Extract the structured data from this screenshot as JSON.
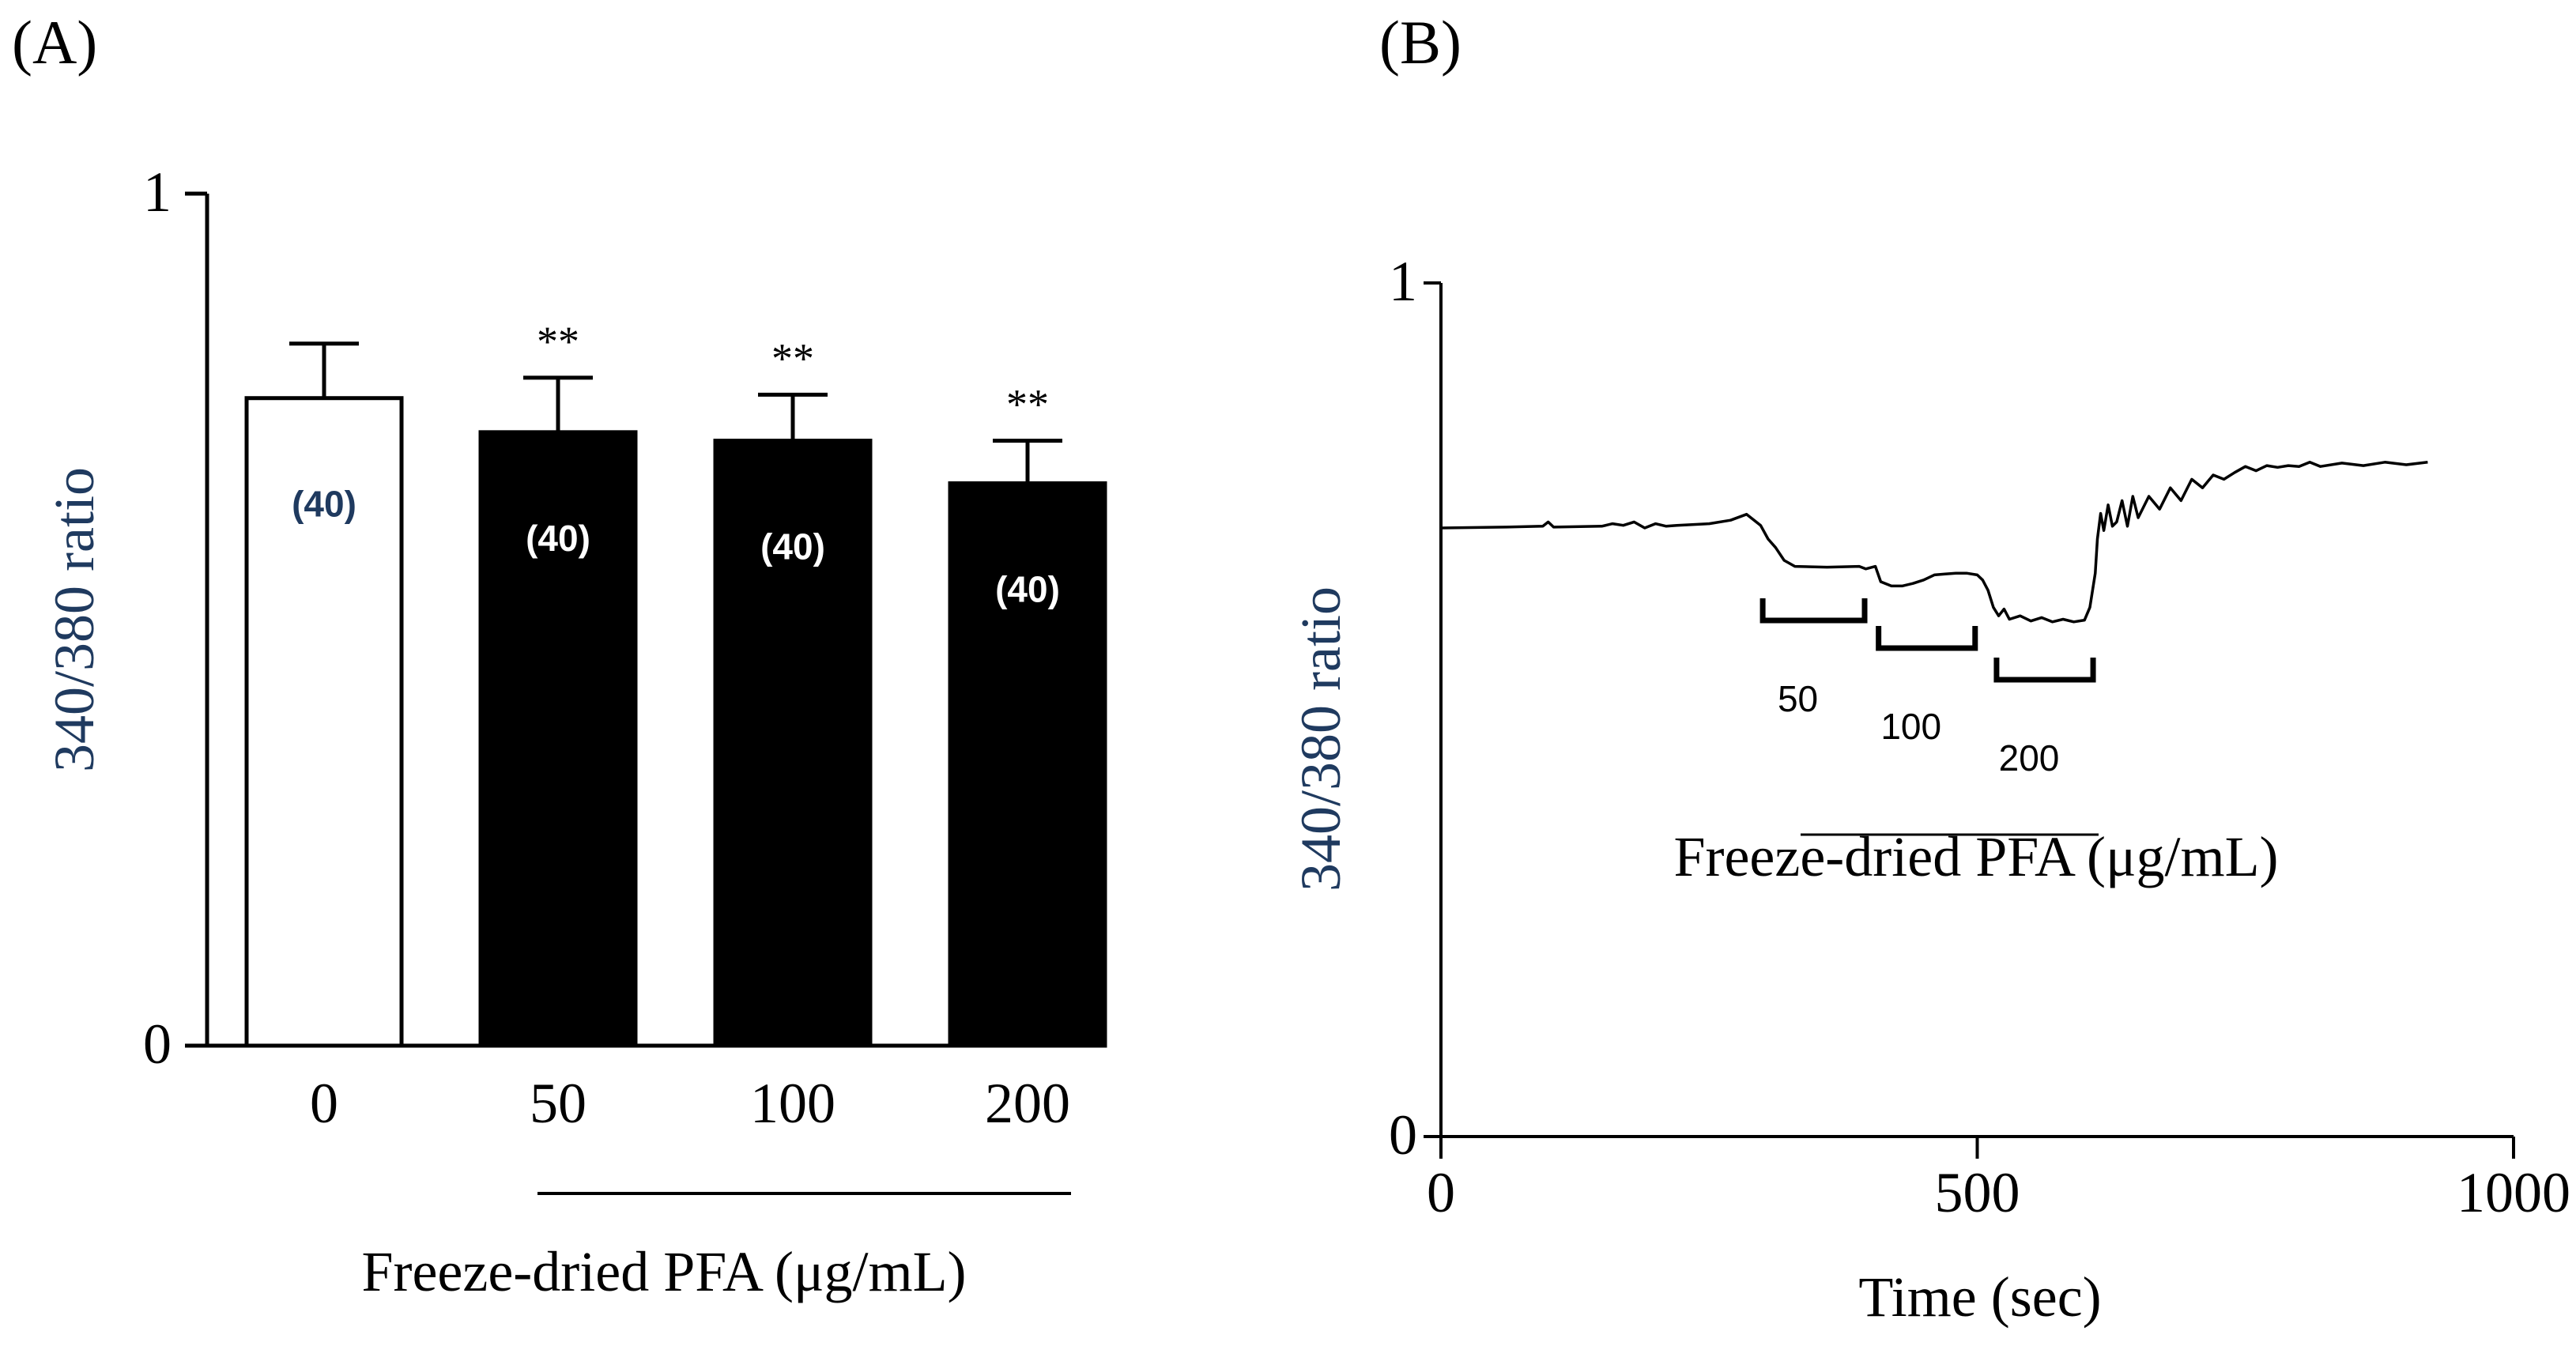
{
  "colors": {
    "axis_label": "#1f3a5f",
    "n_label_on_white": "#1f3a5f",
    "n_label_on_black": "#ffffff",
    "bar_white_fill": "#ffffff",
    "bar_black_fill": "#000000"
  },
  "chart_data": [
    {
      "panel": "(A)",
      "type": "bar",
      "categories": [
        "0",
        "50",
        "100",
        "200"
      ],
      "values": [
        0.76,
        0.72,
        0.71,
        0.66
      ],
      "errors": [
        0.064,
        0.064,
        0.054,
        0.05
      ],
      "bar_fills": [
        "white",
        "black",
        "black",
        "black"
      ],
      "n_labels": [
        "(40)",
        "(40)",
        "(40)",
        "(40)"
      ],
      "significance": [
        "",
        "**",
        "**",
        "**"
      ],
      "ylabel": "340/380 ratio",
      "xlabel": "Freeze-dried PFA (μg/mL)",
      "ylim": [
        0,
        1
      ],
      "yticks": [
        "0",
        "1"
      ]
    },
    {
      "panel": "(B)",
      "type": "line",
      "ylabel": "340/380 ratio",
      "xlabel": "Time (sec)",
      "xlim": [
        0,
        1000
      ],
      "ylim": [
        0,
        1
      ],
      "xticks": [
        "0",
        "500",
        "1000"
      ],
      "yticks": [
        "0",
        "1"
      ],
      "treatment_label": "Freeze-dried PFA (μg/mL)",
      "brackets": [
        {
          "label": "50",
          "start": 300,
          "end": 395
        },
        {
          "label": "100",
          "start": 408,
          "end": 498
        },
        {
          "label": "200",
          "start": 518,
          "end": 608
        }
      ],
      "series": [
        {
          "name": "trace",
          "x": [
            0,
            60,
            95,
            100,
            105,
            150,
            160,
            170,
            180,
            190,
            200,
            210,
            220,
            250,
            270,
            285,
            292,
            298,
            305,
            312,
            320,
            330,
            360,
            390,
            396,
            405,
            410,
            420,
            430,
            440,
            450,
            460,
            470,
            480,
            490,
            500,
            505,
            510,
            515,
            520,
            525,
            530,
            540,
            550,
            560,
            570,
            580,
            590,
            600,
            605,
            610,
            612,
            615,
            618,
            622,
            626,
            630,
            635,
            640,
            645,
            650,
            660,
            670,
            680,
            690,
            700,
            710,
            720,
            730,
            740,
            750,
            760,
            770,
            780,
            790,
            800,
            810,
            820,
            840,
            860,
            880,
            900,
            920
          ],
          "y": [
            0.713,
            0.714,
            0.715,
            0.72,
            0.714,
            0.715,
            0.718,
            0.716,
            0.72,
            0.713,
            0.718,
            0.715,
            0.716,
            0.718,
            0.722,
            0.729,
            0.722,
            0.716,
            0.7,
            0.69,
            0.675,
            0.668,
            0.667,
            0.668,
            0.665,
            0.668,
            0.65,
            0.645,
            0.645,
            0.648,
            0.652,
            0.658,
            0.659,
            0.66,
            0.66,
            0.658,
            0.652,
            0.64,
            0.62,
            0.61,
            0.618,
            0.606,
            0.61,
            0.604,
            0.608,
            0.603,
            0.606,
            0.603,
            0.605,
            0.62,
            0.66,
            0.7,
            0.73,
            0.71,
            0.74,
            0.715,
            0.72,
            0.745,
            0.715,
            0.75,
            0.725,
            0.75,
            0.735,
            0.76,
            0.745,
            0.77,
            0.76,
            0.775,
            0.77,
            0.778,
            0.785,
            0.78,
            0.786,
            0.784,
            0.786,
            0.785,
            0.79,
            0.785,
            0.789,
            0.786,
            0.79,
            0.787,
            0.79
          ]
        }
      ]
    }
  ]
}
